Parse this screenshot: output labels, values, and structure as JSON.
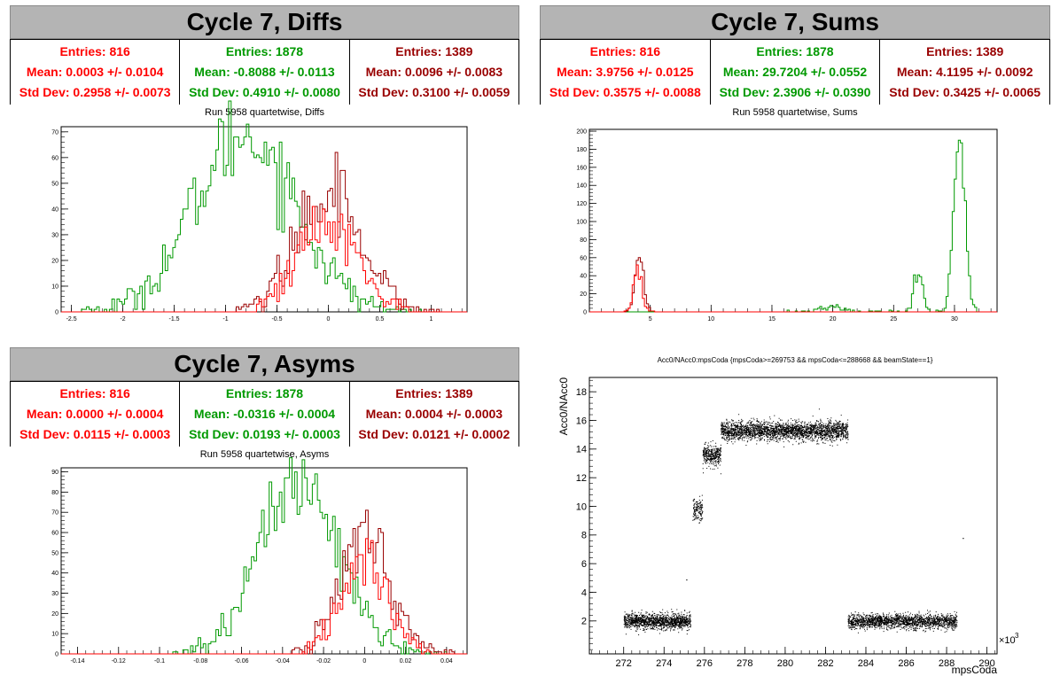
{
  "panels": [
    {
      "title": "Cycle 7, Diffs",
      "subtitle": "Run 5958 quartetwise, Diffs",
      "stats": [
        {
          "color": "#ff0000",
          "entries": "Entries: 816",
          "mean": "Mean: 0.0003 +/- 0.0104",
          "std": "Std Dev: 0.2958 +/- 0.0073"
        },
        {
          "color": "#009900",
          "entries": "Entries: 1878",
          "mean": "Mean: -0.8088 +/- 0.0113",
          "std": "Std Dev: 0.4910 +/- 0.0080"
        },
        {
          "color": "#990000",
          "entries": "Entries: 1389",
          "mean": "Mean: 0.0096 +/- 0.0083",
          "std": "Std Dev: 0.3100 +/- 0.0059"
        }
      ]
    },
    {
      "title": "Cycle 7, Sums",
      "subtitle": "Run 5958 quartetwise, Sums",
      "stats": [
        {
          "color": "#ff0000",
          "entries": "Entries: 816",
          "mean": "Mean: 3.9756 +/- 0.0125",
          "std": "Std Dev: 0.3575 +/- 0.0088"
        },
        {
          "color": "#009900",
          "entries": "Entries: 1878",
          "mean": "Mean: 29.7204 +/- 0.0552",
          "std": "Std Dev: 2.3906 +/- 0.0390"
        },
        {
          "color": "#990000",
          "entries": "Entries: 1389",
          "mean": "Mean: 4.1195 +/- 0.0092",
          "std": "Std Dev: 0.3425 +/- 0.0065"
        }
      ]
    },
    {
      "title": "Cycle 7, Asyms",
      "subtitle": "Run 5958 quartetwise, Asyms",
      "stats": [
        {
          "color": "#ff0000",
          "entries": "Entries: 816",
          "mean": "Mean: 0.0000 +/- 0.0004",
          "std": "Std Dev: 0.0115 +/- 0.0003"
        },
        {
          "color": "#009900",
          "entries": "Entries: 1878",
          "mean": "Mean: -0.0316 +/- 0.0004",
          "std": "Std Dev: 0.0193 +/- 0.0003"
        },
        {
          "color": "#990000",
          "entries": "Entries: 1389",
          "mean": "Mean: 0.0004 +/- 0.0003",
          "std": "Std Dev: 0.0121 +/- 0.0002"
        }
      ]
    }
  ],
  "scatter_title": "Acc0/NAcc0:mpsCoda {mpsCoda>=269753 && mpsCoda<=288668 && beamState==1}",
  "chart_data": [
    {
      "type": "histogram",
      "title": "Run 5958 quartetwise, Diffs",
      "xlim": [
        -2.6,
        1.35
      ],
      "ylim": [
        0,
        72
      ],
      "xticks": [
        -2.5,
        -2,
        -1.5,
        -1,
        -0.5,
        0,
        0.5,
        1
      ],
      "yticks": [
        0,
        10,
        20,
        30,
        40,
        50,
        60,
        70
      ],
      "series": [
        {
          "color": "#009900",
          "mean": -0.8088,
          "std": 0.491,
          "peak": 69,
          "xmin": -2.5,
          "xmax": 0.9
        },
        {
          "color": "#990000",
          "mean": 0.0096,
          "std": 0.31,
          "peak": 49,
          "xmin": -0.9,
          "xmax": 1.2
        },
        {
          "color": "#ff0000",
          "mean": 0.0003,
          "std": 0.2958,
          "peak": 34,
          "xmin": -0.7,
          "xmax": 0.8
        }
      ]
    },
    {
      "type": "histogram",
      "title": "Run 5958 quartetwise, Sums",
      "xlim": [
        0,
        33.5
      ],
      "ylim": [
        0,
        202
      ],
      "xticks": [
        5,
        10,
        15,
        20,
        25,
        30
      ],
      "yticks": [
        0,
        20,
        40,
        60,
        80,
        100,
        120,
        140,
        160,
        180,
        200
      ],
      "series": [
        {
          "color": "#009900",
          "peaks": [
            {
              "mean": 30.4,
              "std": 0.45,
              "peak": 195
            },
            {
              "mean": 27.0,
              "std": 0.35,
              "peak": 40
            },
            {
              "mean": 20.0,
              "std": 1.0,
              "peak": 5
            }
          ],
          "xmin": 16,
          "xmax": 32.5
        },
        {
          "color": "#990000",
          "mean": 4.1195,
          "std": 0.3425,
          "peak": 60,
          "xmin": 2.8,
          "xmax": 5.5
        },
        {
          "color": "#ff0000",
          "mean": 3.9756,
          "std": 0.3575,
          "peak": 38,
          "xmin": 2.8,
          "xmax": 5.3
        }
      ]
    },
    {
      "type": "histogram",
      "title": "Run 5958 quartetwise, Asyms",
      "xlim": [
        -0.148,
        0.05
      ],
      "ylim": [
        0,
        92
      ],
      "xticks": [
        -0.14,
        -0.12,
        -0.1,
        -0.08,
        -0.06,
        -0.04,
        -0.02,
        0,
        0.02,
        0.04
      ],
      "yticks": [
        0,
        10,
        20,
        30,
        40,
        50,
        60,
        70,
        80,
        90
      ],
      "series": [
        {
          "color": "#009900",
          "mean": -0.0316,
          "std": 0.0193,
          "peak": 86,
          "xmin": -0.095,
          "xmax": 0.04
        },
        {
          "color": "#990000",
          "mean": 0.0004,
          "std": 0.0121,
          "peak": 60,
          "xmin": -0.035,
          "xmax": 0.045
        },
        {
          "color": "#ff0000",
          "mean": 0.0,
          "std": 0.0115,
          "peak": 45,
          "xmin": -0.03,
          "xmax": 0.035
        }
      ]
    },
    {
      "type": "scatter",
      "title": "Acc0/NAcc0:mpsCoda {mpsCoda>=269753 && mpsCoda<=288668 && beamState==1}",
      "xlabel": "mpsCoda",
      "xmultiplier": "×10",
      "xmultiplier_exp": "3",
      "ylabel": "Acc0/NAcc0",
      "xlim": [
        270.3,
        290.5
      ],
      "ylim": [
        -0.3,
        19
      ],
      "xticks": [
        272,
        274,
        276,
        278,
        280,
        282,
        284,
        286,
        288,
        290
      ],
      "yticks": [
        2,
        4,
        6,
        8,
        10,
        12,
        14,
        16,
        18
      ],
      "clusters": [
        {
          "x0": 272.0,
          "x1": 275.3,
          "y": 2.0,
          "spread": 0.55,
          "count": 1400
        },
        {
          "x0": 275.4,
          "x1": 275.9,
          "y": 9.8,
          "spread": 0.8,
          "count": 150
        },
        {
          "x0": 275.9,
          "x1": 276.8,
          "y": 13.6,
          "spread": 0.7,
          "count": 350
        },
        {
          "x0": 276.8,
          "x1": 283.1,
          "y": 15.3,
          "spread": 0.65,
          "count": 2600
        },
        {
          "x0": 283.1,
          "x1": 288.5,
          "y": 2.0,
          "spread": 0.5,
          "count": 1900
        }
      ]
    }
  ]
}
